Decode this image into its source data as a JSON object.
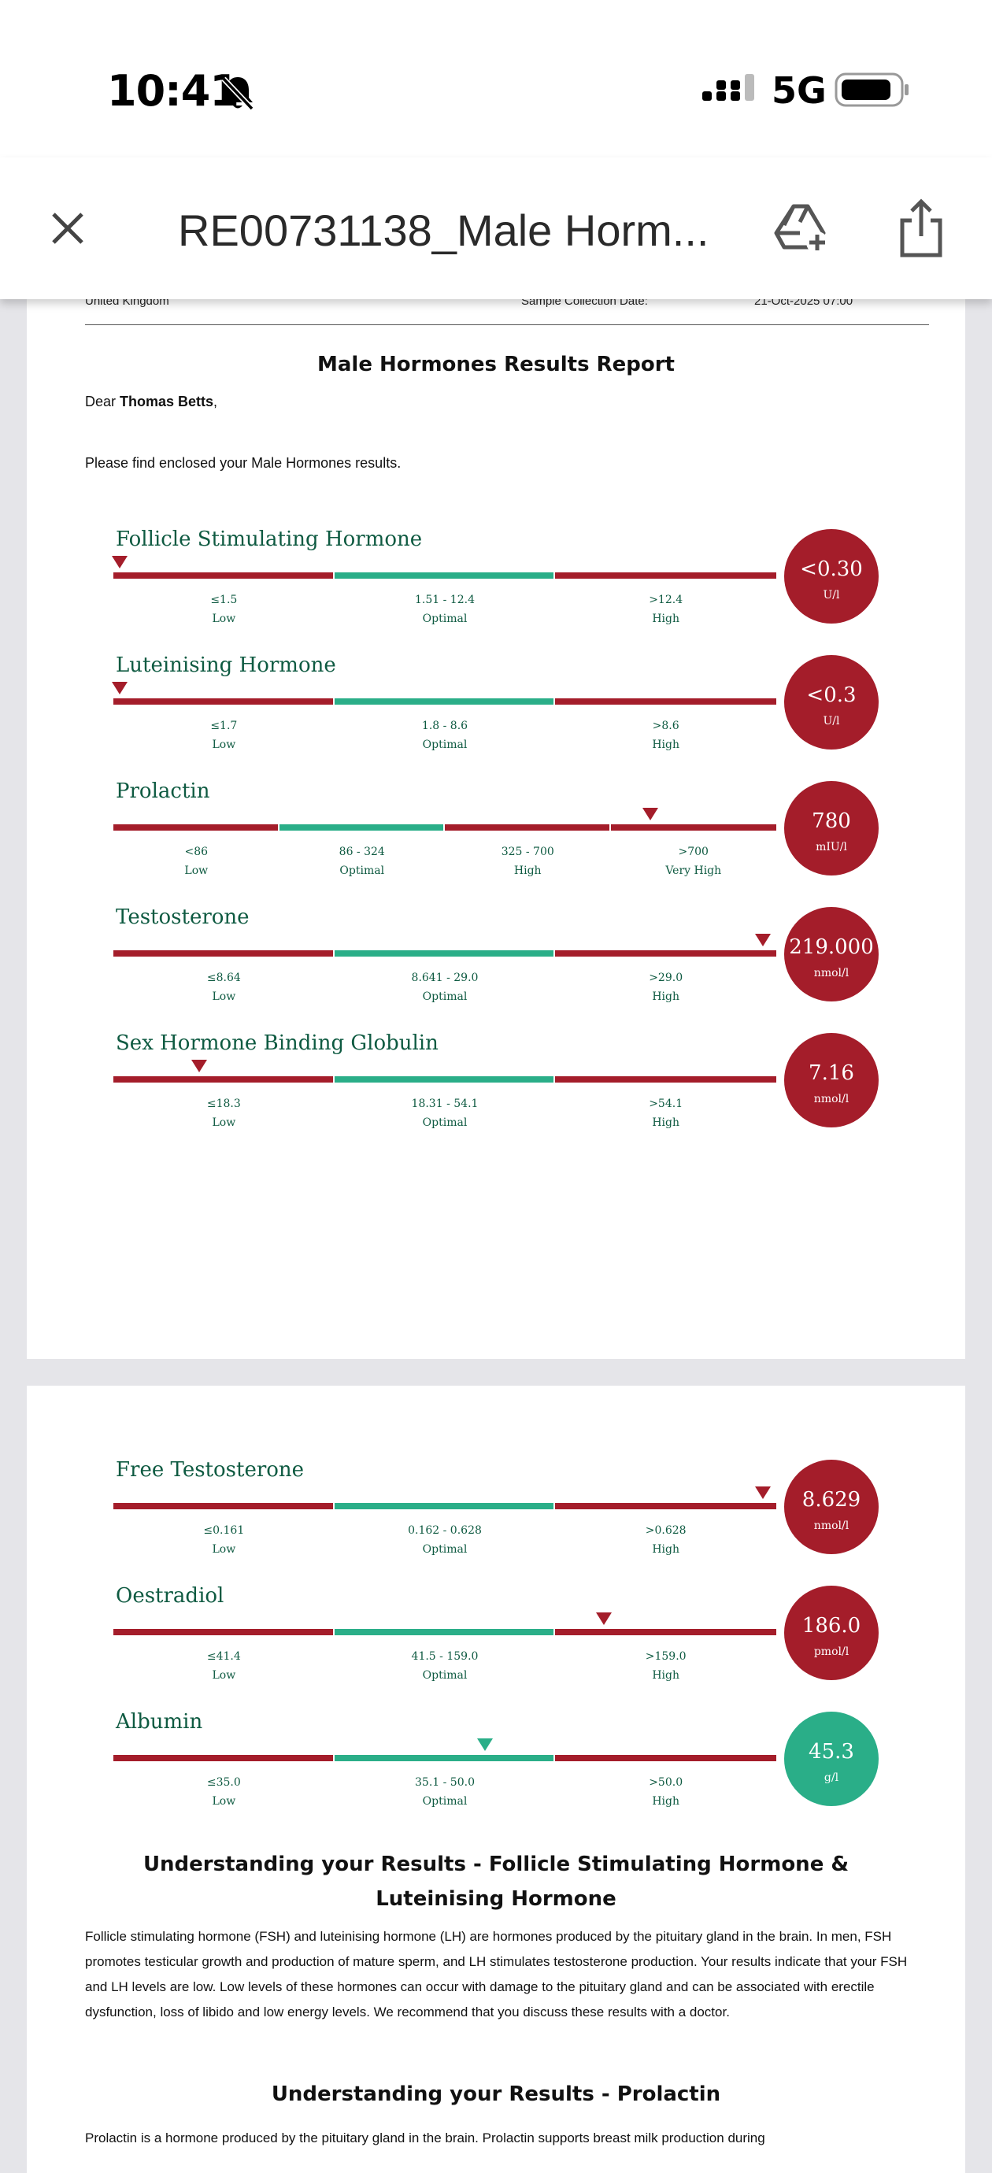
{
  "status_bar": {
    "time": "10:41",
    "network": "5G"
  },
  "app_bar": {
    "document_title": "RE00731138_Male Horm..."
  },
  "report": {
    "header_left": "United Kingdom",
    "header_mid": "Sample Collection Date:",
    "header_right": "21-Oct-2025 07:00",
    "title": "Male Hormones Results Report",
    "greeting": "Dear ",
    "patient_name": "Thomas Betts",
    "greeting_end": ",",
    "intro": "Please find enclosed your Male Hormones results."
  },
  "colors": {
    "red": "#a41d2a",
    "green": "#2aae88",
    "text_green": "#0e5a41"
  },
  "tests_page1": [
    {
      "name": "Follicle Stimulating Hormone",
      "value": "<0.30",
      "unit": "U/l",
      "status": "red",
      "marker_fraction": 0.01,
      "ranges": [
        {
          "range": "≤1.5",
          "label": "Low",
          "color": "red"
        },
        {
          "range": "1.51 - 12.4",
          "label": "Optimal",
          "color": "green"
        },
        {
          "range": ">12.4",
          "label": "High",
          "color": "red"
        }
      ]
    },
    {
      "name": "Luteinising Hormone",
      "value": "<0.3",
      "unit": "U/l",
      "status": "red",
      "marker_fraction": 0.01,
      "ranges": [
        {
          "range": "≤1.7",
          "label": "Low",
          "color": "red"
        },
        {
          "range": "1.8 - 8.6",
          "label": "Optimal",
          "color": "green"
        },
        {
          "range": ">8.6",
          "label": "High",
          "color": "red"
        }
      ]
    },
    {
      "name": "Prolactin",
      "value": "780",
      "unit": "mIU/l",
      "status": "red",
      "marker_fraction": 0.81,
      "ranges": [
        {
          "range": "<86",
          "label": "Low",
          "color": "red"
        },
        {
          "range": "86 - 324",
          "label": "Optimal",
          "color": "green"
        },
        {
          "range": "325 - 700",
          "label": "High",
          "color": "red"
        },
        {
          "range": ">700",
          "label": "Very High",
          "color": "red"
        }
      ]
    },
    {
      "name": "Testosterone",
      "value": "219.000",
      "unit": "nmol/l",
      "status": "red",
      "marker_fraction": 0.98,
      "ranges": [
        {
          "range": "≤8.64",
          "label": "Low",
          "color": "red"
        },
        {
          "range": "8.641 - 29.0",
          "label": "Optimal",
          "color": "green"
        },
        {
          "range": ">29.0",
          "label": "High",
          "color": "red"
        }
      ]
    },
    {
      "name": "Sex Hormone Binding Globulin",
      "value": "7.16",
      "unit": "nmol/l",
      "status": "red",
      "marker_fraction": 0.13,
      "ranges": [
        {
          "range": "≤18.3",
          "label": "Low",
          "color": "red"
        },
        {
          "range": "18.31 - 54.1",
          "label": "Optimal",
          "color": "green"
        },
        {
          "range": ">54.1",
          "label": "High",
          "color": "red"
        }
      ]
    }
  ],
  "tests_page2": [
    {
      "name": "Free Testosterone",
      "value": "8.629",
      "unit": "nmol/l",
      "status": "red",
      "marker_fraction": 0.98,
      "ranges": [
        {
          "range": "≤0.161",
          "label": "Low",
          "color": "red"
        },
        {
          "range": "0.162 - 0.628",
          "label": "Optimal",
          "color": "green"
        },
        {
          "range": ">0.628",
          "label": "High",
          "color": "red"
        }
      ]
    },
    {
      "name": "Oestradiol",
      "value": "186.0",
      "unit": "pmol/l",
      "status": "red",
      "marker_fraction": 0.74,
      "ranges": [
        {
          "range": "≤41.4",
          "label": "Low",
          "color": "red"
        },
        {
          "range": "41.5 - 159.0",
          "label": "Optimal",
          "color": "green"
        },
        {
          "range": ">159.0",
          "label": "High",
          "color": "red"
        }
      ]
    },
    {
      "name": "Albumin",
      "value": "45.3",
      "unit": "g/l",
      "status": "green",
      "marker_fraction": 0.56,
      "ranges": [
        {
          "range": "≤35.0",
          "label": "Low",
          "color": "red"
        },
        {
          "range": "35.1 - 50.0",
          "label": "Optimal",
          "color": "green"
        },
        {
          "range": ">50.0",
          "label": "High",
          "color": "red"
        }
      ]
    }
  ],
  "sections": {
    "fsh_lh_heading": "Understanding your Results - Follicle Stimulating Hormone & Luteinising Hormone",
    "fsh_lh_text": "Follicle stimulating hormone (FSH) and luteinising hormone (LH) are hormones produced by the pituitary gland in the brain. In men, FSH promotes testicular growth and production of mature sperm, and LH stimulates testosterone production. Your results indicate that your FSH and LH levels are low. Low levels of these hormones can occur with damage to the pituitary gland and can be associated with erectile dysfunction, loss of libido and low energy levels. We recommend that you discuss these results with a doctor.",
    "prolactin_heading": "Understanding your Results - Prolactin",
    "prolactin_text": "Prolactin is a hormone produced by the pituitary gland in the brain. Prolactin supports breast milk production during"
  }
}
